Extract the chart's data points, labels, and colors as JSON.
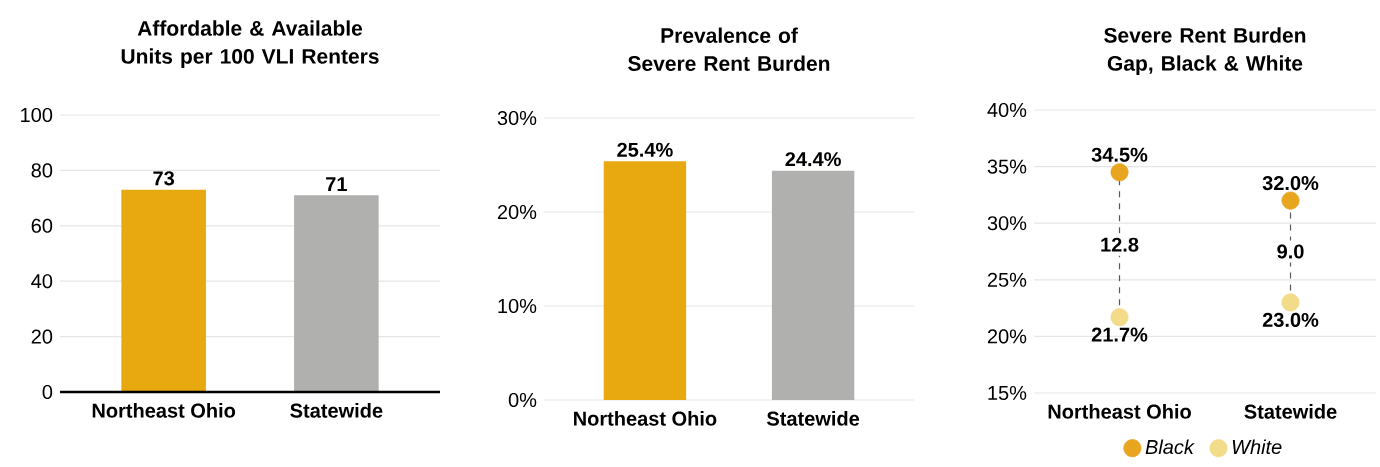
{
  "chart_data": [
    {
      "type": "bar",
      "title": "Affordable & Available Units per 100 VLI Renters",
      "categories": [
        "Northeast Ohio",
        "Statewide"
      ],
      "values": [
        73,
        71
      ],
      "colors": [
        "#e8a80f",
        "#b0b1ae"
      ],
      "ylim": [
        0,
        100
      ],
      "yticks": [
        0,
        20,
        40,
        60,
        80,
        100
      ],
      "grid": "y",
      "data_labels": true
    },
    {
      "type": "bar",
      "title": "Prevalence of Severe Rent Burden",
      "categories": [
        "Northeast Ohio",
        "Statewide"
      ],
      "values": [
        25.4,
        24.4
      ],
      "colors": [
        "#e8a80f",
        "#b0b1ae"
      ],
      "value_labels": [
        "25.4%",
        "24.4%"
      ],
      "ylim": [
        0,
        30
      ],
      "yticks": [
        {
          "value": 0,
          "label": "0%"
        },
        {
          "value": 10,
          "label": "10%"
        },
        {
          "value": 20,
          "label": "20%"
        },
        {
          "value": 30,
          "label": "30%"
        }
      ],
      "grid": "y"
    },
    {
      "type": "scatter",
      "title": "Severe Rent Burden Gap, Black & White",
      "categories": [
        "Northeast Ohio",
        "Statewide"
      ],
      "series": [
        {
          "name": "Black",
          "color": "#e8a520",
          "values": [
            34.5,
            32.0
          ],
          "value_labels": [
            "34.5%",
            "32.0%"
          ]
        },
        {
          "name": "White",
          "color": "#f2dc8a",
          "values": [
            21.7,
            23.0
          ],
          "value_labels": [
            "21.7%",
            "23.0%"
          ]
        }
      ],
      "annotations": [
        "12.8",
        "9.0"
      ],
      "marker": "circle",
      "ylim": [
        15,
        40
      ],
      "yticks": [
        {
          "value": 15,
          "label": "15%"
        },
        {
          "value": 20,
          "label": "20%"
        },
        {
          "value": 25,
          "label": "25%"
        },
        {
          "value": 30,
          "label": "30%"
        },
        {
          "value": 35,
          "label": "35%"
        },
        {
          "value": 40,
          "label": "40%"
        }
      ],
      "grid": "y",
      "legend": "bottom"
    }
  ]
}
